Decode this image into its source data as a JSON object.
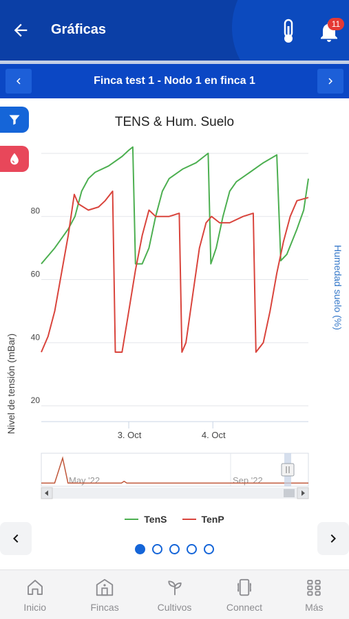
{
  "header": {
    "title": "Gráficas",
    "notification_count": "11",
    "colors": {
      "bar": "#0b3fa6",
      "badge": "#e53935"
    }
  },
  "selector": {
    "label": "Finca test 1 - Nodo 1 en finca 1"
  },
  "side_buttons": [
    {
      "icon": "filter-icon",
      "color": "#1565d8"
    },
    {
      "icon": "drop-icon",
      "color": "#e8475a"
    }
  ],
  "chart_data": {
    "type": "line",
    "title": "TENS & Hum. Suelo",
    "ylabel": "Nivel de tensión (mBar)",
    "y2label": "Humedad suelo (%)",
    "yticks": [
      "80",
      "60",
      "40",
      "20"
    ],
    "xticks": [
      "3. Oct",
      "4. Oct"
    ],
    "navigator_labels": [
      "May '22",
      "Sep '22"
    ],
    "ylim": [
      15,
      105
    ],
    "series": [
      {
        "name": "TenS",
        "color": "#4caf50",
        "points": [
          [
            0,
            65
          ],
          [
            2,
            70
          ],
          [
            4,
            76
          ],
          [
            5,
            80
          ],
          [
            6,
            88
          ],
          [
            7,
            92
          ],
          [
            8,
            94
          ],
          [
            10,
            96
          ],
          [
            12,
            99
          ],
          [
            13,
            101
          ],
          [
            13.6,
            102
          ],
          [
            14,
            65
          ],
          [
            15,
            65
          ],
          [
            16,
            70
          ],
          [
            17,
            80
          ],
          [
            18,
            88
          ],
          [
            19,
            92
          ],
          [
            21,
            95
          ],
          [
            23,
            97
          ],
          [
            24.8,
            100
          ],
          [
            25.2,
            65
          ],
          [
            26,
            70
          ],
          [
            27,
            80
          ],
          [
            28,
            88
          ],
          [
            29,
            91
          ],
          [
            31,
            94
          ],
          [
            33,
            97
          ],
          [
            35,
            99.5
          ],
          [
            35.6,
            66
          ],
          [
            36.5,
            68
          ],
          [
            38,
            76
          ],
          [
            39,
            82
          ],
          [
            39.7,
            92
          ]
        ]
      },
      {
        "name": "TenP",
        "color": "#d9443c",
        "points": [
          [
            0,
            37
          ],
          [
            1,
            42
          ],
          [
            2,
            50
          ],
          [
            3,
            62
          ],
          [
            4,
            74
          ],
          [
            4.9,
            87
          ],
          [
            5.5,
            84
          ],
          [
            7,
            82
          ],
          [
            8.5,
            83
          ],
          [
            9.5,
            85
          ],
          [
            10.6,
            88
          ],
          [
            11,
            37
          ],
          [
            12,
            37
          ],
          [
            13,
            50
          ],
          [
            14,
            63
          ],
          [
            15,
            74
          ],
          [
            16,
            82
          ],
          [
            17,
            80
          ],
          [
            19,
            80
          ],
          [
            20.5,
            81
          ],
          [
            20.9,
            37
          ],
          [
            21.5,
            40
          ],
          [
            22.5,
            55
          ],
          [
            23.5,
            70
          ],
          [
            24.5,
            78
          ],
          [
            25.3,
            80
          ],
          [
            26.5,
            78
          ],
          [
            28,
            78
          ],
          [
            30,
            80
          ],
          [
            31.5,
            81
          ],
          [
            31.9,
            37
          ],
          [
            33,
            40
          ],
          [
            34,
            50
          ],
          [
            35,
            62
          ],
          [
            36,
            72
          ],
          [
            37,
            80
          ],
          [
            38,
            85
          ],
          [
            39.7,
            86
          ]
        ]
      }
    ],
    "navigator": {
      "series": [
        {
          "name": "TenP",
          "points": [
            [
              0,
              1
            ],
            [
              5,
              1
            ],
            [
              8,
              15
            ],
            [
              9,
              8
            ],
            [
              10,
              1
            ],
            [
              30,
              1
            ],
            [
              31,
              2
            ],
            [
              32,
              1
            ],
            [
              100,
              1
            ]
          ]
        }
      ]
    },
    "legend_position": "bottom"
  },
  "pager": {
    "dots": 5,
    "active": 0
  },
  "bottom_nav": [
    {
      "label": "Inicio",
      "icon": "home-icon"
    },
    {
      "label": "Fincas",
      "icon": "barn-icon"
    },
    {
      "label": "Cultivos",
      "icon": "sprout-icon"
    },
    {
      "label": "Connect",
      "icon": "device-icon"
    },
    {
      "label": "Más",
      "icon": "grid-icon"
    }
  ]
}
